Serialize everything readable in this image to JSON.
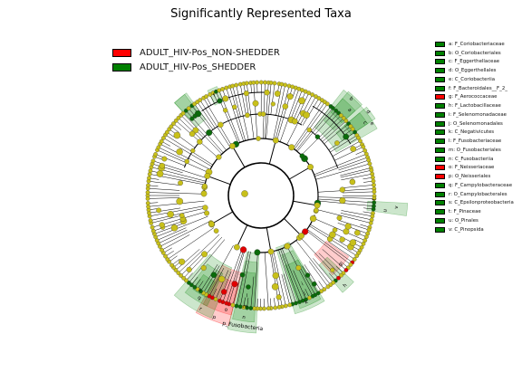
{
  "title": "Significantly Represented Taxa",
  "groups": [
    {
      "name": "ADULT_HIV-Pos_NON-SHEDDER",
      "color": "#ff0000"
    },
    {
      "name": "ADULT_HIV-Pos_SHEDDER",
      "color": "#008000"
    }
  ],
  "taxa": [
    {
      "label": "a: F_Coriobacteriaceae",
      "color": "#008000"
    },
    {
      "label": "b: O_Coriobacteriales",
      "color": "#008000"
    },
    {
      "label": "c: F_Eggerthellaceae",
      "color": "#008000"
    },
    {
      "label": "d: O_Eggerthellales",
      "color": "#008000"
    },
    {
      "label": "e: C_Coriobacteriia",
      "color": "#008000"
    },
    {
      "label": "f: F_Bacteroidales__F_2_",
      "color": "#008000"
    },
    {
      "label": "g: F_Aerococcaceae",
      "color": "#ff0000"
    },
    {
      "label": "h: F_Lactobacillaceae",
      "color": "#008000"
    },
    {
      "label": "i: F_Selenomonadaceae",
      "color": "#008000"
    },
    {
      "label": "j: O_Selenomonadales",
      "color": "#008000"
    },
    {
      "label": "k: C_Negativicutes",
      "color": "#008000"
    },
    {
      "label": "l: F_Fusobacteriaceae",
      "color": "#008000"
    },
    {
      "label": "m: O_Fusobacteriales",
      "color": "#008000"
    },
    {
      "label": "n: C_Fusobacteriia",
      "color": "#008000"
    },
    {
      "label": "o: F_Neisseriaceae",
      "color": "#ff0000"
    },
    {
      "label": "p: O_Neisseriales",
      "color": "#ff0000"
    },
    {
      "label": "q: F_Campylobacteraceae",
      "color": "#008000"
    },
    {
      "label": "r: O_Campylobacterales",
      "color": "#008000"
    },
    {
      "label": "s: C_Epsilonproteobacteria",
      "color": "#008000"
    },
    {
      "label": "t: F_Pinaceae",
      "color": "#008000"
    },
    {
      "label": "u: O_Pinales",
      "color": "#008000"
    },
    {
      "label": "v: C_Pinopsida",
      "color": "#008000"
    }
  ],
  "sector_labels": [
    {
      "text": "b",
      "color": "#008000"
    },
    {
      "text": "a",
      "color": "#008000"
    },
    {
      "text": "d",
      "color": "#008000"
    },
    {
      "text": "c",
      "color": "#008000"
    },
    {
      "text": "e",
      "color": "#008000"
    },
    {
      "text": "v",
      "color": "#008000"
    },
    {
      "text": "u",
      "color": "#008000"
    },
    {
      "text": "t",
      "color": "#008000"
    },
    {
      "text": "s",
      "color": "#008000"
    },
    {
      "text": "q",
      "color": "#008000"
    },
    {
      "text": "r",
      "color": "#008000"
    },
    {
      "text": "p",
      "color": "#ff0000"
    },
    {
      "text": "o",
      "color": "#ff0000"
    },
    {
      "text": "p_Fusobacteria",
      "color": "#008000"
    },
    {
      "text": "n",
      "color": "#008000"
    },
    {
      "text": "m",
      "color": "#008000"
    },
    {
      "text": "l",
      "color": "#008000"
    },
    {
      "text": "k",
      "color": "#008000"
    },
    {
      "text": "j",
      "color": "#008000"
    },
    {
      "text": "i",
      "color": "#008000"
    },
    {
      "text": "h",
      "color": "#008000"
    },
    {
      "text": "g",
      "color": "#ff0000"
    },
    {
      "text": "f",
      "color": "#008000"
    }
  ],
  "colors": {
    "node_default": "#c8c01a",
    "node_shedder": "#0a6b0a",
    "node_nonshedder": "#e00000",
    "shade_shedder": "#008000",
    "shade_nonshedder": "#ff0000"
  }
}
